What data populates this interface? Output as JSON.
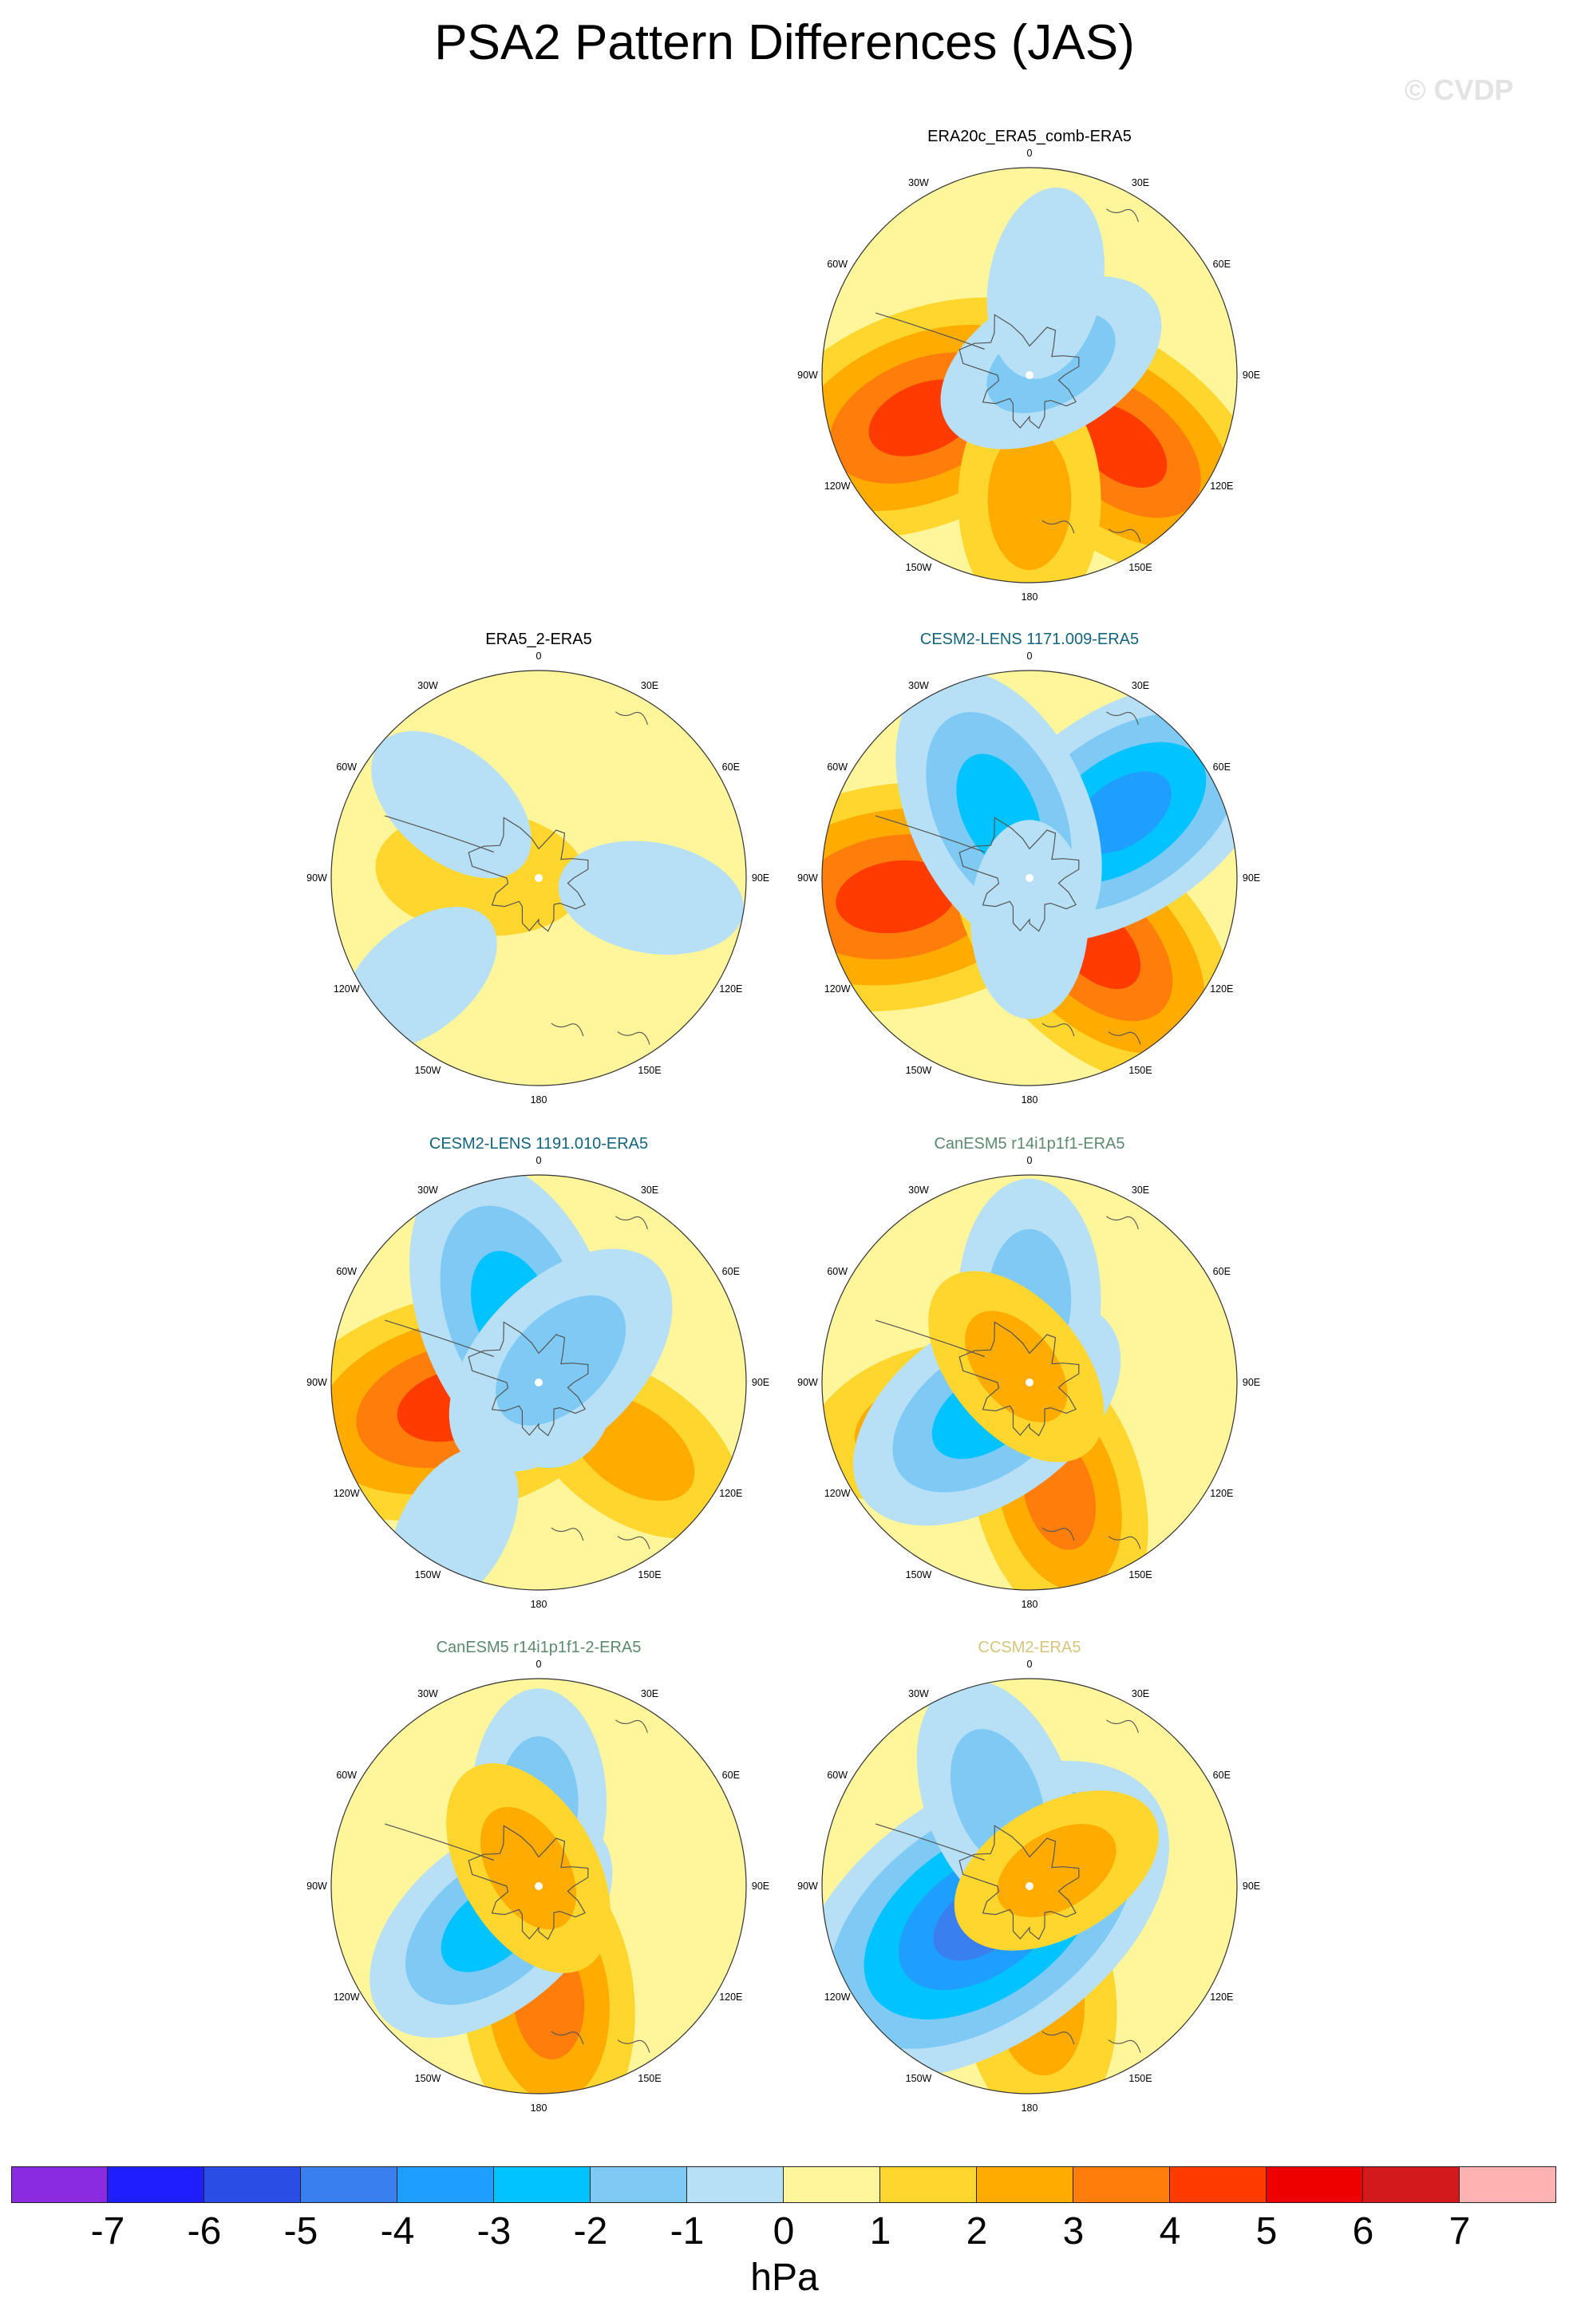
{
  "title": "PSA2 Pattern Differences (JAS)",
  "watermark": "© CVDP",
  "units": "hPa",
  "colorbar": {
    "labels": [
      "-7",
      "-6",
      "-5",
      "-4",
      "-3",
      "-2",
      "-1",
      "0",
      "1",
      "2",
      "3",
      "4",
      "5",
      "6",
      "7"
    ],
    "colors": [
      "#8a2be2",
      "#1e1eff",
      "#2a4de6",
      "#3a7ff0",
      "#1e9fff",
      "#00c3ff",
      "#7fcaf5",
      "#b7e0f6",
      "#fff59a",
      "#ffd62e",
      "#ffab00",
      "#ff7d0a",
      "#ff3b00",
      "#ee0000",
      "#d4191d",
      "#ffb2b2"
    ]
  },
  "tick_labels": [
    "0",
    "30E",
    "60E",
    "90E",
    "120E",
    "150E",
    "180",
    "150W",
    "120W",
    "90W",
    "60W",
    "30W"
  ],
  "chart_data": [
    {
      "type": "heatmap",
      "title": "ERA20c_ERA5_comb-ERA5",
      "title_color": "#000000",
      "projection": "south-polar-stereographic",
      "units": "hPa",
      "levels": [
        -7,
        -6,
        -5,
        -4,
        -3,
        -2,
        -1,
        0,
        1,
        2,
        3,
        4,
        5,
        6,
        7
      ],
      "colors": [
        "#8a2be2",
        "#1e1eff",
        "#2a4de6",
        "#3a7ff0",
        "#1e9fff",
        "#00c3ff",
        "#7fcaf5",
        "#b7e0f6",
        "#fff59a",
        "#ffd62e",
        "#ffab00",
        "#ff7d0a",
        "#ff3b00",
        "#ee0000",
        "#d4191d",
        "#ffb2b2"
      ],
      "features": [
        {
          "lon": -112,
          "r": 0.55,
          "value": 3.5
        },
        {
          "lon": 128,
          "r": 0.55,
          "value": 3.2
        },
        {
          "lon": 180,
          "r": 0.6,
          "value": 1.5
        },
        {
          "lon": 60,
          "r": 0.12,
          "value": -1.5
        },
        {
          "lon": 10,
          "r": 0.45,
          "value": -0.7
        }
      ]
    },
    {
      "type": "heatmap",
      "title": "ERA5_2-ERA5",
      "title_color": "#000000",
      "projection": "south-polar-stereographic",
      "units": "hPa",
      "levels": [
        -7,
        -6,
        -5,
        -4,
        -3,
        -2,
        -1,
        0,
        1,
        2,
        3,
        4,
        5,
        6,
        7
      ],
      "colors": [
        "#8a2be2",
        "#1e1eff",
        "#2a4de6",
        "#3a7ff0",
        "#1e9fff",
        "#00c3ff",
        "#7fcaf5",
        "#b7e0f6",
        "#fff59a",
        "#ffd62e",
        "#ffab00",
        "#ff7d0a",
        "#ff3b00",
        "#ee0000",
        "#d4191d",
        "#ffb2b2"
      ],
      "features": [
        {
          "lon": -85,
          "r": 0.28,
          "value": 1.0
        },
        {
          "lon": -50,
          "r": 0.55,
          "value": -0.6
        },
        {
          "lon": 100,
          "r": 0.55,
          "value": -0.6
        },
        {
          "lon": -130,
          "r": 0.75,
          "value": -0.5
        }
      ]
    },
    {
      "type": "heatmap",
      "title": "CESM2-LENS 1171.009-ERA5",
      "title_color": "#13647f",
      "projection": "south-polar-stereographic",
      "units": "hPa",
      "levels": [
        -7,
        -6,
        -5,
        -4,
        -3,
        -2,
        -1,
        0,
        1,
        2,
        3,
        4,
        5,
        6,
        7
      ],
      "colors": [
        "#8a2be2",
        "#1e1eff",
        "#2a4de6",
        "#3a7ff0",
        "#1e9fff",
        "#00c3ff",
        "#7fcaf5",
        "#b7e0f6",
        "#fff59a",
        "#ffd62e",
        "#ffab00",
        "#ff7d0a",
        "#ff3b00",
        "#ee0000",
        "#d4191d",
        "#ffb2b2"
      ],
      "features": [
        {
          "lon": -98,
          "r": 0.65,
          "value": 3.8
        },
        {
          "lon": 135,
          "r": 0.45,
          "value": 3.2
        },
        {
          "lon": 55,
          "r": 0.55,
          "value": -3.2
        },
        {
          "lon": -25,
          "r": 0.35,
          "value": -2.5
        },
        {
          "lon": 180,
          "r": 0.2,
          "value": -0.8
        }
      ]
    },
    {
      "type": "heatmap",
      "title": "CESM2-LENS 1191.010-ERA5",
      "title_color": "#13647f",
      "projection": "south-polar-stereographic",
      "units": "hPa",
      "levels": [
        -7,
        -6,
        -5,
        -4,
        -3,
        -2,
        -1,
        0,
        1,
        2,
        3,
        4,
        5,
        6,
        7
      ],
      "colors": [
        "#8a2be2",
        "#1e1eff",
        "#2a4de6",
        "#3a7ff0",
        "#1e9fff",
        "#00c3ff",
        "#7fcaf5",
        "#b7e0f6",
        "#fff59a",
        "#ffd62e",
        "#ffab00",
        "#ff7d0a",
        "#ff3b00",
        "#ee0000",
        "#d4191d",
        "#ffb2b2"
      ],
      "features": [
        {
          "lon": -105,
          "r": 0.42,
          "value": 3.6
        },
        {
          "lon": 125,
          "r": 0.55,
          "value": 1.5
        },
        {
          "lon": -20,
          "r": 0.35,
          "value": -2.8
        },
        {
          "lon": 45,
          "r": 0.15,
          "value": -2.0
        },
        {
          "lon": -150,
          "r": 0.82,
          "value": -0.5
        }
      ]
    },
    {
      "type": "heatmap",
      "title": "CanESM5 r14i1p1f1-ERA5",
      "title_color": "#5b8a6e",
      "projection": "south-polar-stereographic",
      "units": "hPa",
      "levels": [
        -7,
        -6,
        -5,
        -4,
        -3,
        -2,
        -1,
        0,
        1,
        2,
        3,
        4,
        5,
        6,
        7
      ],
      "colors": [
        "#8a2be2",
        "#1e1eff",
        "#2a4de6",
        "#3a7ff0",
        "#1e9fff",
        "#00c3ff",
        "#7fcaf5",
        "#b7e0f6",
        "#fff59a",
        "#ffd62e",
        "#ffab00",
        "#ff7d0a",
        "#ff3b00",
        "#ee0000",
        "#d4191d",
        "#ffb2b2"
      ],
      "features": [
        {
          "lon": 165,
          "r": 0.55,
          "value": 2.2
        },
        {
          "lon": -110,
          "r": 0.55,
          "value": 1.5
        },
        {
          "lon": -125,
          "r": 0.25,
          "value": -2.5
        },
        {
          "lon": 0,
          "r": 0.4,
          "value": -1.5
        },
        {
          "lon": -40,
          "r": 0.1,
          "value": 1.2
        }
      ]
    },
    {
      "type": "heatmap",
      "title": "CanESM5 r14i1p1f1-2-ERA5",
      "title_color": "#5b8a6e",
      "projection": "south-polar-stereographic",
      "units": "hPa",
      "levels": [
        -7,
        -6,
        -5,
        -4,
        -3,
        -2,
        -1,
        0,
        1,
        2,
        3,
        4,
        5,
        6,
        7
      ],
      "colors": [
        "#8a2be2",
        "#1e1eff",
        "#2a4de6",
        "#3a7ff0",
        "#1e9fff",
        "#00c3ff",
        "#7fcaf5",
        "#b7e0f6",
        "#fff59a",
        "#ffd62e",
        "#ffab00",
        "#ff7d0a",
        "#ff3b00",
        "#ee0000",
        "#d4191d",
        "#ffb2b2"
      ],
      "features": [
        {
          "lon": 175,
          "r": 0.55,
          "value": 2.3
        },
        {
          "lon": -130,
          "r": 0.3,
          "value": -2.2
        },
        {
          "lon": 0,
          "r": 0.4,
          "value": -1.3
        },
        {
          "lon": -30,
          "r": 0.1,
          "value": 1.3
        }
      ]
    },
    {
      "type": "heatmap",
      "title": "CCSM2-ERA5",
      "title_color": "#d6c57a",
      "projection": "south-polar-stereographic",
      "units": "hPa",
      "levels": [
        -7,
        -6,
        -5,
        -4,
        -3,
        -2,
        -1,
        0,
        1,
        2,
        3,
        4,
        5,
        6,
        7
      ],
      "colors": [
        "#8a2be2",
        "#1e1eff",
        "#2a4de6",
        "#3a7ff0",
        "#1e9fff",
        "#00c3ff",
        "#7fcaf5",
        "#b7e0f6",
        "#fff59a",
        "#ffd62e",
        "#ffab00",
        "#ff7d0a",
        "#ff3b00",
        "#ee0000",
        "#d4191d",
        "#ffb2b2"
      ],
      "features": [
        {
          "lon": -130,
          "r": 0.55,
          "value": 2.2
        },
        {
          "lon": 175,
          "r": 0.55,
          "value": 1.8
        },
        {
          "lon": -125,
          "r": 0.28,
          "value": -4.5
        },
        {
          "lon": -20,
          "r": 0.45,
          "value": -1.6
        },
        {
          "lon": 60,
          "r": 0.15,
          "value": 1.2
        }
      ]
    }
  ]
}
